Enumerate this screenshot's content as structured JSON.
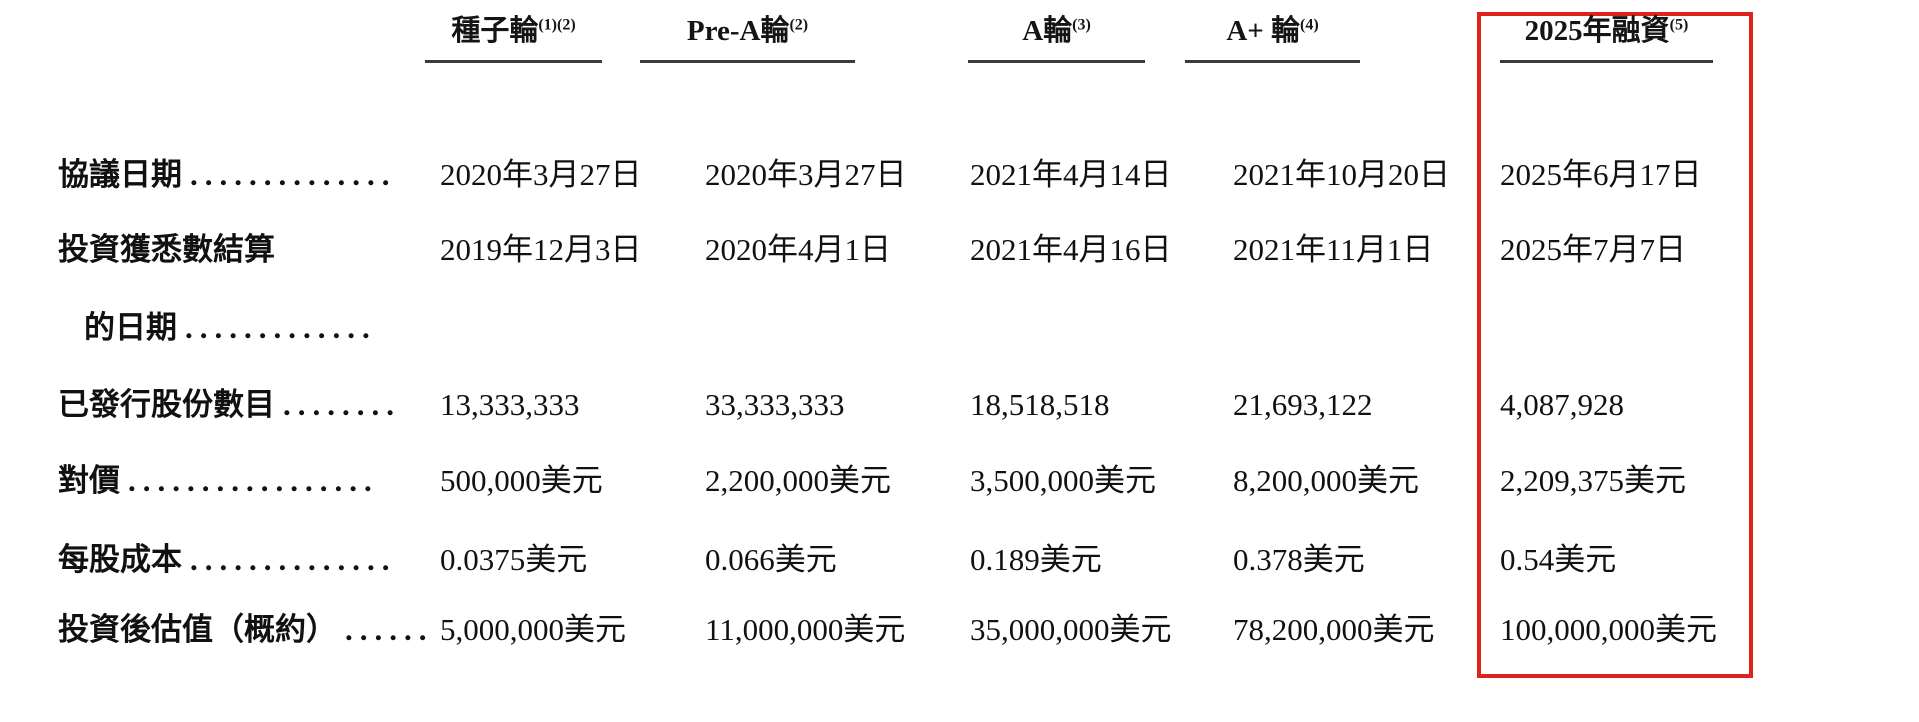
{
  "page": {
    "background_color": "#ffffff",
    "highlight_border_color": "#de231e",
    "header_underline_color": "#3b3b3b"
  },
  "table": {
    "columns": [
      {
        "title": "種子輪",
        "sup": "(1)(2)",
        "highlighted": false
      },
      {
        "title": "Pre-A輪",
        "sup": "(2)",
        "highlighted": false
      },
      {
        "title": "A輪",
        "sup": "(3)",
        "highlighted": false
      },
      {
        "title": "A+ 輪",
        "sup": "(4)",
        "highlighted": false
      },
      {
        "title": "2025年融資",
        "sup": "(5)",
        "highlighted": true
      }
    ],
    "rows": [
      {
        "label": "協議日期",
        "dots": "..............",
        "indent": false,
        "values": [
          "2020年3月27日",
          "2020年3月27日",
          "2021年4月14日",
          "2021年10月20日",
          "2025年6月17日"
        ]
      },
      {
        "label": "投資獲悉數結算",
        "dots": "",
        "indent": false,
        "values": [
          "2019年12月3日",
          "2020年4月1日",
          "2021年4月16日",
          "2021年11月1日",
          "2025年7月7日"
        ]
      },
      {
        "label": "的日期",
        "dots": ".............",
        "indent": true,
        "values": [
          "",
          "",
          "",
          "",
          ""
        ]
      },
      {
        "label": "已發行股份數目",
        "dots": "........",
        "indent": false,
        "values": [
          "13,333,333",
          "33,333,333",
          "18,518,518",
          "21,693,122",
          "4,087,928"
        ]
      },
      {
        "label": "對價",
        "dots": ".................",
        "indent": false,
        "values": [
          "500,000美元",
          "2,200,000美元",
          "3,500,000美元",
          "8,200,000美元",
          "2,209,375美元"
        ]
      },
      {
        "label": "每股成本",
        "dots": "..............",
        "indent": false,
        "values": [
          "0.0375美元",
          "0.066美元",
          "0.189美元",
          "0.378美元",
          "0.54美元"
        ]
      },
      {
        "label": "投資後估值（概約）",
        "dots": "......",
        "indent": false,
        "values": [
          "5,000,000美元",
          "11,000,000美元",
          "35,000,000美元",
          "78,200,000美元",
          "100,000,000美元"
        ]
      }
    ]
  }
}
